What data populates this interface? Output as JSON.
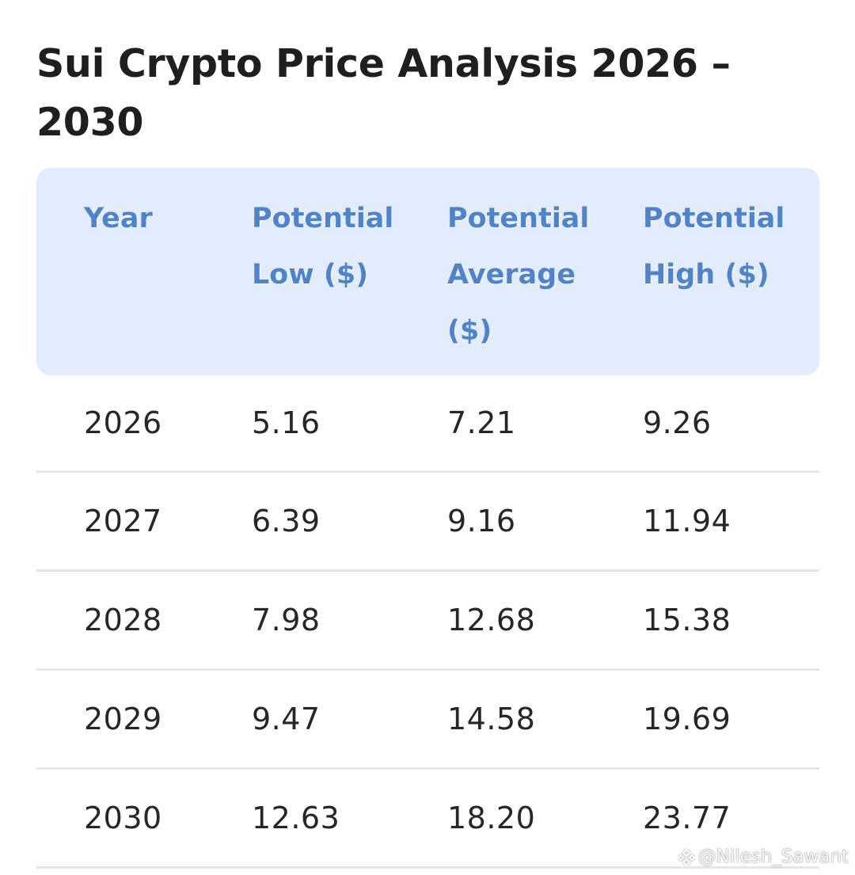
{
  "title": "Sui Crypto Price Analysis 2026 – 2030",
  "table": {
    "headers": [
      [
        "Year"
      ],
      [
        "Potential",
        "Low ($)"
      ],
      [
        "Potential",
        "Average",
        "($)"
      ],
      [
        "Potential",
        "High ($)"
      ]
    ],
    "rows": [
      [
        "2026",
        "5.16",
        "7.21",
        "9.26"
      ],
      [
        "2027",
        "6.39",
        "9.16",
        "11.94"
      ],
      [
        "2028",
        "7.98",
        "12.68",
        "15.38"
      ],
      [
        "2029",
        "9.47",
        "14.58",
        "19.69"
      ],
      [
        "2030",
        "12.63",
        "18.20",
        "23.77"
      ]
    ]
  },
  "watermark": {
    "text": "@Nilesh_Sawant",
    "icon": "binance-square-icon"
  },
  "colors": {
    "header_bg": "#e3ecfa",
    "header_text": "#4f83cc",
    "divider": "#e6e6e6"
  }
}
